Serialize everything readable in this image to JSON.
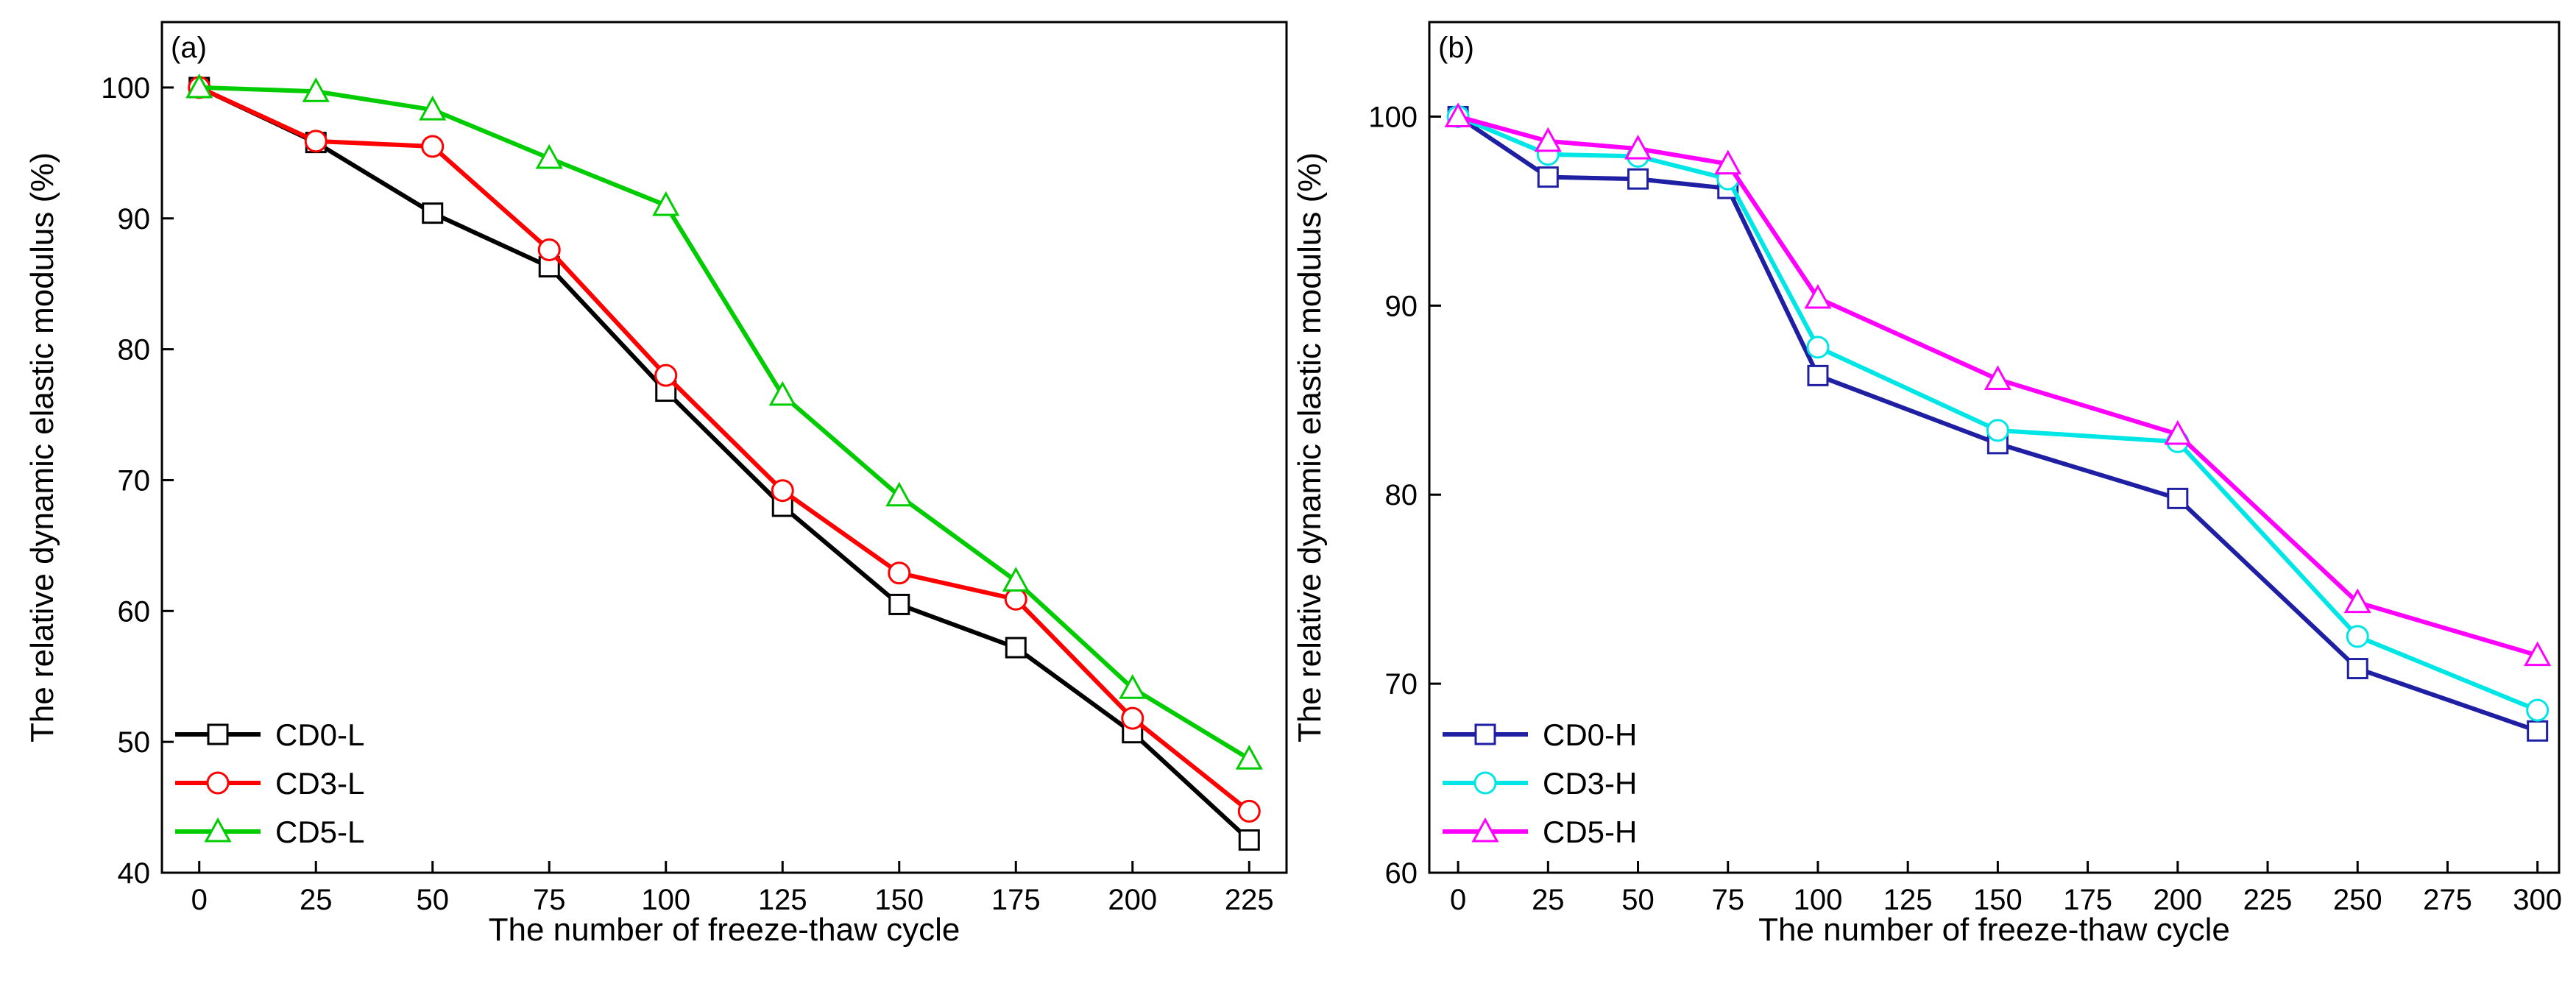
{
  "chart_data": [
    {
      "type": "line",
      "panel_label": "(a)",
      "xlabel": "The number of freeze-thaw cycle",
      "ylabel": "The relative dynamic elastic modulus (%)",
      "xlim": [
        -8,
        233
      ],
      "ylim": [
        40,
        105
      ],
      "xticks": [
        0,
        25,
        50,
        75,
        100,
        125,
        150,
        175,
        200,
        225
      ],
      "yticks": [
        40,
        50,
        60,
        70,
        80,
        90,
        100
      ],
      "grid": false,
      "legend_position": "bottom-left",
      "x": [
        0,
        25,
        50,
        75,
        100,
        125,
        150,
        175,
        200,
        225
      ],
      "series": [
        {
          "name": "CD0-L",
          "color": "#000000",
          "marker": "square",
          "values": [
            100,
            95.8,
            90.4,
            86.3,
            76.8,
            68.0,
            60.5,
            57.2,
            50.7,
            42.5
          ]
        },
        {
          "name": "CD3-L",
          "color": "#ff0000",
          "marker": "circle",
          "values": [
            100,
            95.9,
            95.5,
            87.6,
            78.0,
            69.2,
            62.9,
            60.9,
            51.8,
            44.7
          ]
        },
        {
          "name": "CD5-L",
          "color": "#00cc00",
          "marker": "triangle",
          "values": [
            100,
            99.7,
            98.3,
            94.6,
            91.0,
            76.5,
            68.8,
            62.3,
            54.1,
            48.7
          ]
        }
      ]
    },
    {
      "type": "line",
      "panel_label": "(b)",
      "xlabel": "The number of freeze-thaw cycle",
      "ylabel": "The relative dynamic elastic modulus (%)",
      "xlim": [
        -8,
        306
      ],
      "ylim": [
        60,
        105
      ],
      "xticks": [
        0,
        25,
        50,
        75,
        100,
        125,
        150,
        175,
        200,
        225,
        250,
        275,
        300
      ],
      "yticks": [
        60,
        70,
        80,
        90,
        100
      ],
      "grid": false,
      "legend_position": "bottom-left",
      "x": [
        0,
        25,
        50,
        75,
        100,
        150,
        200,
        250,
        300
      ],
      "series": [
        {
          "name": "CD0-H",
          "color": "#1f1fa3",
          "marker": "square",
          "values": [
            100,
            96.8,
            96.7,
            96.2,
            86.3,
            82.7,
            79.8,
            70.8,
            67.5
          ]
        },
        {
          "name": "CD3-H",
          "color": "#00e6e6",
          "marker": "circle",
          "values": [
            100,
            98.0,
            97.9,
            96.7,
            87.8,
            83.4,
            82.8,
            72.5,
            68.6
          ]
        },
        {
          "name": "CD5-H",
          "color": "#ff00ff",
          "marker": "triangle",
          "values": [
            100,
            98.7,
            98.3,
            97.5,
            90.4,
            86.1,
            83.2,
            74.3,
            71.5
          ]
        }
      ]
    }
  ]
}
